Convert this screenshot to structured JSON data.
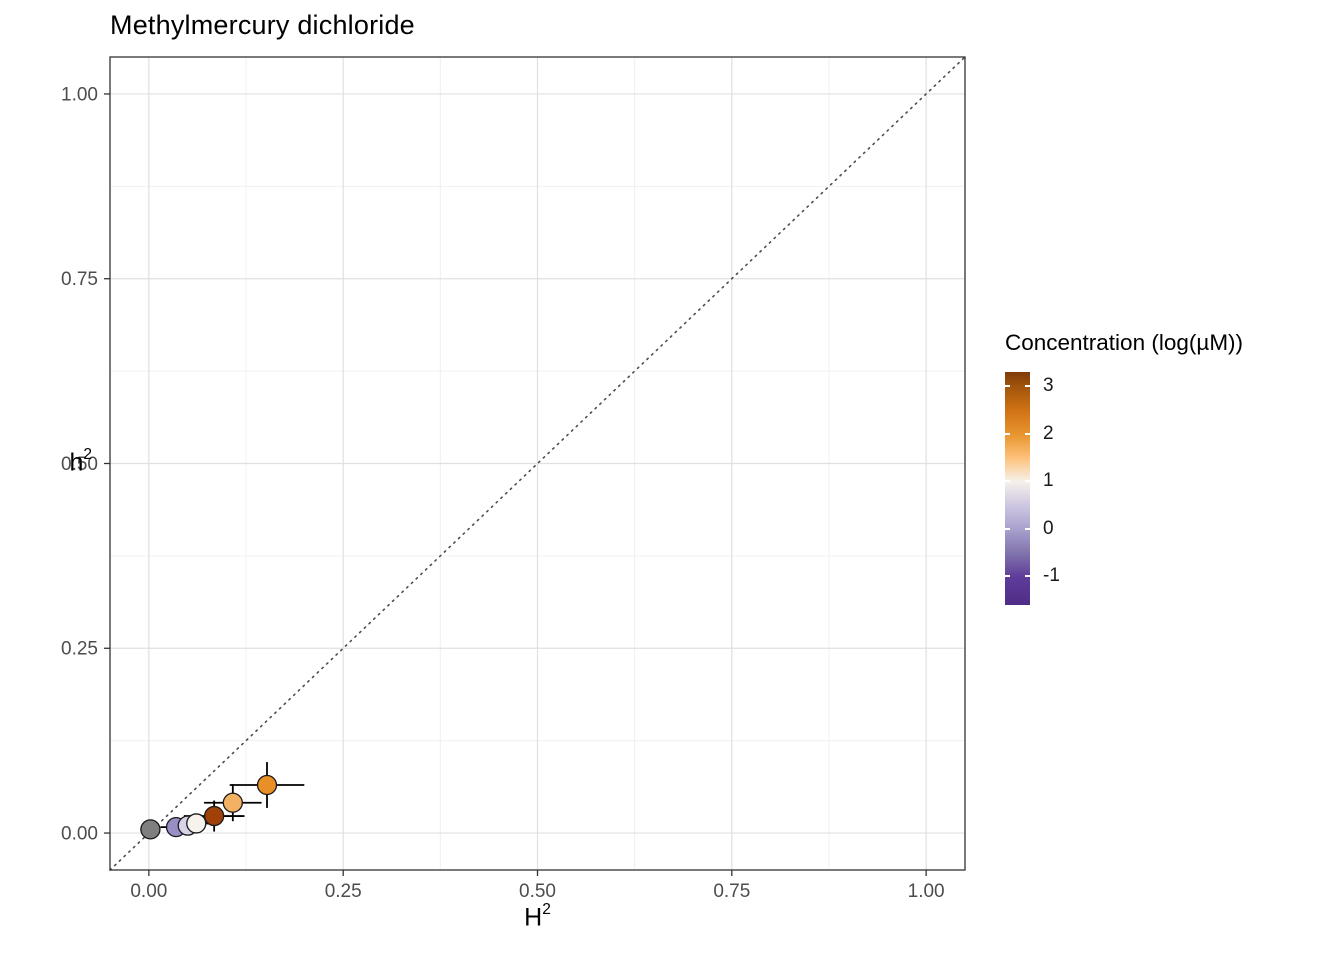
{
  "chart_data": {
    "type": "scatter",
    "title": "Methylmercury dichloride",
    "xlabel_base": "H",
    "xlabel_exp": "2",
    "ylabel_base": "h",
    "ylabel_exp": "2",
    "xlim": [
      -0.05,
      1.05
    ],
    "ylim": [
      -0.05,
      1.05
    ],
    "ticks": {
      "values": [
        0,
        0.25,
        0.5,
        0.75,
        1
      ],
      "labels": [
        "0.00",
        "0.25",
        "0.50",
        "0.75",
        "1.00"
      ]
    },
    "minor_ticks": [
      0.125,
      0.375,
      0.625,
      0.875
    ],
    "identity_line": {
      "slope": 1,
      "intercept": 0,
      "style": "dotted",
      "color": "#4d4d4d"
    },
    "points": [
      {
        "H2": 0.002,
        "h2": 0.005,
        "xerr": 0.013,
        "yerr": 0.007,
        "conc": null,
        "color": "#7f7f7f"
      },
      {
        "H2": 0.035,
        "h2": 0.008,
        "xerr": 0.02,
        "yerr": 0.011,
        "conc": -1.0,
        "color": "#9a8fc4"
      },
      {
        "H2": 0.05,
        "h2": 0.01,
        "xerr": 0.016,
        "yerr": 0.01,
        "conc": 0.0,
        "color": "#d8d3e8"
      },
      {
        "H2": 0.061,
        "h2": 0.013,
        "xerr": 0.02,
        "yerr": 0.012,
        "conc": 1.0,
        "color": "#f6f2ec"
      },
      {
        "H2": 0.084,
        "h2": 0.023,
        "xerr": 0.039,
        "yerr": 0.021,
        "conc": 3.0,
        "color": "#a04208"
      },
      {
        "H2": 0.108,
        "h2": 0.041,
        "xerr": 0.037,
        "yerr": 0.025,
        "conc": 1.8,
        "color": "#f3b263"
      },
      {
        "H2": 0.152,
        "h2": 0.065,
        "xerr": 0.048,
        "yerr": 0.031,
        "conc": 2.4,
        "color": "#e98f27"
      }
    ],
    "legend": {
      "title": "Concentration (log(µM))",
      "bar_domain": [
        -1.6,
        3.3
      ],
      "ticks": [
        {
          "label": "3",
          "value": 3
        },
        {
          "label": "2",
          "value": 2
        },
        {
          "label": "1",
          "value": 1
        },
        {
          "label": "0",
          "value": 0
        },
        {
          "label": "-1",
          "value": -1
        }
      ],
      "gradient_stops": [
        {
          "offset": 0.0,
          "color": "#7f3b08"
        },
        {
          "offset": 0.06,
          "color": "#a0540b"
        },
        {
          "offset": 0.16,
          "color": "#cf7014"
        },
        {
          "offset": 0.27,
          "color": "#e8962f"
        },
        {
          "offset": 0.37,
          "color": "#fdc27c"
        },
        {
          "offset": 0.47,
          "color": "#f6f1ea"
        },
        {
          "offset": 0.57,
          "color": "#cfc8e2"
        },
        {
          "offset": 0.67,
          "color": "#aaa2ce"
        },
        {
          "offset": 0.78,
          "color": "#8073ac"
        },
        {
          "offset": 0.88,
          "color": "#5e3c99"
        },
        {
          "offset": 1.0,
          "color": "#4f2d87"
        }
      ]
    },
    "style": {
      "panel_background": "#ffffff",
      "panel_border": "#333333",
      "grid_major": "#e0e0e0",
      "grid_minor": "#f0f0f0",
      "tick_color": "#333333",
      "tick_label_color": "#4d4d4d",
      "errorbar_color": "#000000",
      "point_outline": "#1a1a1a"
    }
  }
}
